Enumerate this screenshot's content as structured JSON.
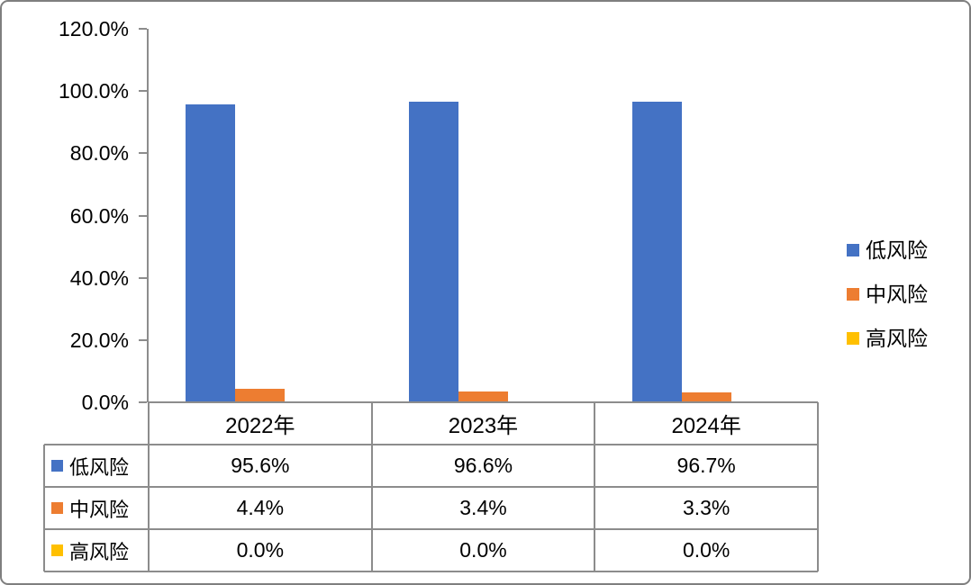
{
  "frame": {
    "background": "#ffffff",
    "border_color": "#7f7f7f"
  },
  "chart_data": {
    "type": "bar",
    "title": "",
    "xlabel": "",
    "ylabel": "",
    "categories": [
      "2022年",
      "2023年",
      "2024年"
    ],
    "series": [
      {
        "name": "低风险",
        "color": "#4472C4",
        "values": [
          95.6,
          96.6,
          96.7
        ],
        "labels": [
          "95.6%",
          "96.6%",
          "96.7%"
        ]
      },
      {
        "name": "中风险",
        "color": "#ED7D31",
        "values": [
          4.4,
          3.4,
          3.3
        ],
        "labels": [
          "4.4%",
          "3.4%",
          "3.3%"
        ]
      },
      {
        "name": "高风险",
        "color": "#FFC000",
        "values": [
          0.0,
          0.0,
          0.0
        ],
        "labels": [
          "0.0%",
          "0.0%",
          "0.0%"
        ]
      }
    ],
    "ylim": [
      0,
      120
    ],
    "yticks": [
      {
        "value": 0,
        "label": "0.0%"
      },
      {
        "value": 20,
        "label": "20.0%"
      },
      {
        "value": 40,
        "label": "40.0%"
      },
      {
        "value": 60,
        "label": "60.0%"
      },
      {
        "value": 80,
        "label": "80.0%"
      },
      {
        "value": 100,
        "label": "100.0%"
      },
      {
        "value": 120,
        "label": "120.0%"
      }
    ],
    "grid": false,
    "legend_position": "right",
    "has_data_table": true,
    "axis_color": "#8c8c8c",
    "table_border_color": "#8c8c8c",
    "text_color": "#000000"
  }
}
